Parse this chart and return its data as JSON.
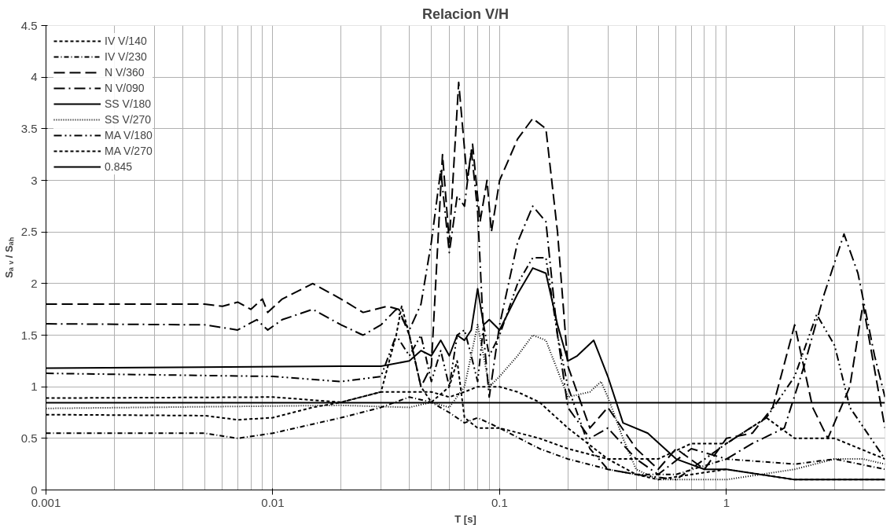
{
  "chart_data": {
    "type": "line",
    "title": "Relacion V/H",
    "xlabel": "T [s]",
    "ylabel": "Sₐ ᵥ / Sₐₕ",
    "log": "x",
    "xlim": [
      0.001,
      5
    ],
    "ylim": [
      0,
      4.5
    ],
    "xticks": [
      0.001,
      0.01,
      0.1,
      1
    ],
    "yticks": [
      0,
      0.5,
      1,
      1.5,
      2,
      2.5,
      3,
      3.5,
      4,
      4.5
    ],
    "grid": true,
    "legend": "top left",
    "color": "#000000",
    "series": [
      {
        "name": "IV V/140",
        "color": "#000000",
        "line_style": "dashed",
        "x": [
          0.001,
          0.005,
          0.007,
          0.01,
          0.015,
          0.02,
          0.03,
          0.035,
          0.037,
          0.04,
          0.045,
          0.05,
          0.06,
          0.065,
          0.07,
          0.08,
          0.1,
          0.15,
          0.2,
          0.3,
          0.5,
          0.7,
          1,
          1.5,
          2,
          3,
          5
        ],
        "values": [
          0.73,
          0.72,
          0.68,
          0.7,
          0.8,
          0.85,
          0.95,
          1.5,
          1.78,
          1.5,
          1.0,
          0.85,
          1.0,
          1.25,
          0.7,
          0.6,
          0.6,
          0.5,
          0.4,
          0.3,
          0.3,
          0.45,
          0.45,
          0.7,
          0.5,
          0.5,
          0.3
        ]
      },
      {
        "name": "IV V/230",
        "color": "#000000",
        "line_style": "dashdot",
        "x": [
          0.001,
          0.005,
          0.007,
          0.01,
          0.02,
          0.03,
          0.04,
          0.05,
          0.06,
          0.07,
          0.08,
          0.1,
          0.15,
          0.2,
          0.3,
          0.4,
          0.6,
          1,
          2,
          3,
          5
        ],
        "values": [
          0.55,
          0.55,
          0.5,
          0.55,
          0.7,
          0.8,
          0.9,
          0.85,
          0.75,
          0.65,
          0.7,
          0.6,
          0.4,
          0.3,
          0.2,
          0.15,
          0.15,
          0.3,
          0.25,
          0.3,
          0.2
        ]
      },
      {
        "name": "N V/360",
        "color": "#000000",
        "line_style": "longdash",
        "x": [
          0.001,
          0.005,
          0.006,
          0.007,
          0.008,
          0.009,
          0.0095,
          0.011,
          0.015,
          0.02,
          0.025,
          0.032,
          0.036,
          0.04,
          0.045,
          0.05,
          0.056,
          0.06,
          0.066,
          0.072,
          0.076,
          0.082,
          0.088,
          0.092,
          0.1,
          0.12,
          0.14,
          0.16,
          0.18,
          0.2,
          0.25,
          0.3,
          0.4,
          0.5,
          0.6,
          0.8,
          1,
          1.3,
          1.6,
          2,
          2.4,
          2.8,
          3.5,
          4,
          5
        ],
        "values": [
          1.8,
          1.8,
          1.78,
          1.82,
          1.75,
          1.85,
          1.72,
          1.85,
          2.0,
          1.85,
          1.72,
          1.78,
          1.75,
          1.5,
          1.0,
          1.2,
          3.25,
          2.4,
          3.95,
          3.0,
          3.35,
          2.6,
          3.0,
          2.5,
          3.0,
          3.4,
          3.6,
          3.5,
          2.5,
          1.2,
          0.6,
          0.8,
          0.4,
          0.2,
          0.4,
          0.2,
          0.5,
          0.55,
          0.8,
          1.6,
          0.8,
          0.5,
          1.0,
          1.8,
          0.6
        ]
      },
      {
        "name": "N V/090",
        "color": "#000000",
        "line_style": "longdashdot",
        "x": [
          0.001,
          0.005,
          0.007,
          0.0085,
          0.0095,
          0.011,
          0.015,
          0.02,
          0.025,
          0.03,
          0.035,
          0.04,
          0.045,
          0.05,
          0.055,
          0.06,
          0.065,
          0.07,
          0.075,
          0.08,
          0.085,
          0.09,
          0.1,
          0.12,
          0.14,
          0.16,
          0.18,
          0.2,
          0.25,
          0.3,
          0.4,
          0.5,
          0.7,
          1,
          1.3,
          1.8,
          2.2,
          2.7,
          3.3,
          3.8,
          4.5,
          5
        ],
        "values": [
          1.61,
          1.6,
          1.55,
          1.65,
          1.55,
          1.65,
          1.75,
          1.6,
          1.5,
          1.6,
          1.75,
          1.55,
          1.8,
          2.4,
          3.1,
          2.3,
          2.85,
          2.75,
          3.3,
          2.7,
          1.5,
          0.9,
          1.6,
          2.4,
          2.75,
          2.6,
          1.5,
          0.8,
          0.5,
          0.6,
          0.3,
          0.15,
          0.4,
          0.3,
          0.45,
          0.6,
          1.2,
          1.9,
          2.48,
          2.1,
          1.3,
          0.9
        ]
      },
      {
        "name": "SS V/180",
        "color": "#000000",
        "line_style": "solid",
        "x": [
          0.001,
          0.02,
          0.03,
          0.04,
          0.045,
          0.05,
          0.055,
          0.06,
          0.065,
          0.07,
          0.075,
          0.08,
          0.085,
          0.09,
          0.1,
          0.12,
          0.14,
          0.16,
          0.18,
          0.2,
          0.22,
          0.26,
          0.3,
          0.35,
          0.45,
          0.6,
          0.8,
          1,
          2,
          5
        ],
        "values": [
          1.18,
          1.2,
          1.2,
          1.25,
          1.35,
          1.3,
          1.45,
          1.3,
          1.5,
          1.45,
          1.55,
          1.95,
          1.6,
          1.65,
          1.55,
          1.9,
          2.15,
          2.1,
          1.6,
          1.25,
          1.3,
          1.45,
          1.1,
          0.65,
          0.55,
          0.3,
          0.2,
          0.2,
          0.1,
          0.1
        ]
      },
      {
        "name": "SS V/270",
        "color": "#000000",
        "line_style": "dotted",
        "x": [
          0.001,
          0.02,
          0.04,
          0.05,
          0.06,
          0.07,
          0.08,
          0.085,
          0.09,
          0.1,
          0.12,
          0.14,
          0.16,
          0.2,
          0.25,
          0.28,
          0.3,
          0.35,
          0.4,
          0.5,
          1,
          2,
          3,
          4,
          5
        ],
        "values": [
          0.79,
          0.82,
          0.8,
          0.85,
          0.8,
          1.0,
          1.6,
          1.3,
          1.0,
          1.1,
          1.3,
          1.5,
          1.45,
          0.9,
          0.95,
          1.05,
          0.9,
          0.5,
          0.2,
          0.1,
          0.1,
          0.2,
          0.3,
          0.3,
          0.25
        ]
      },
      {
        "name": "MA V/180",
        "color": "#000000",
        "line_style": "dashdotdot",
        "x": [
          0.001,
          0.01,
          0.02,
          0.03,
          0.035,
          0.04,
          0.045,
          0.05,
          0.055,
          0.06,
          0.065,
          0.07,
          0.075,
          0.08,
          0.085,
          0.09,
          0.1,
          0.12,
          0.14,
          0.16,
          0.18,
          0.2,
          0.25,
          0.3,
          0.4,
          0.6,
          1,
          1.5,
          2,
          2.5,
          3,
          3.5,
          5
        ],
        "values": [
          1.13,
          1.1,
          1.05,
          1.1,
          1.5,
          1.3,
          1.5,
          1.05,
          1.35,
          1.0,
          1.5,
          1.55,
          1.3,
          1.05,
          1.6,
          1.3,
          1.5,
          2.0,
          2.25,
          2.25,
          1.5,
          1.0,
          0.4,
          0.2,
          0.15,
          0.1,
          0.45,
          0.7,
          1.1,
          1.7,
          1.4,
          0.8,
          0.3
        ]
      },
      {
        "name": "MA V/270",
        "color": "#000000",
        "line_style": "dashed",
        "x": [
          0.001,
          0.01,
          0.02,
          0.03,
          0.04,
          0.05,
          0.06,
          0.07,
          0.08,
          0.1,
          0.12,
          0.15,
          0.2,
          0.3,
          0.4,
          0.5,
          0.7,
          1,
          2,
          3,
          5
        ],
        "values": [
          0.89,
          0.9,
          0.85,
          0.95,
          0.95,
          0.95,
          0.9,
          0.95,
          1.0,
          1.0,
          0.95,
          0.85,
          0.6,
          0.3,
          0.15,
          0.1,
          0.15,
          0.2,
          0.1,
          0.1,
          0.1
        ]
      },
      {
        "name": "0.845",
        "color": "#000000",
        "line_style": "solid",
        "x": [
          0.001,
          5
        ],
        "values": [
          0.845,
          0.845
        ]
      }
    ]
  }
}
